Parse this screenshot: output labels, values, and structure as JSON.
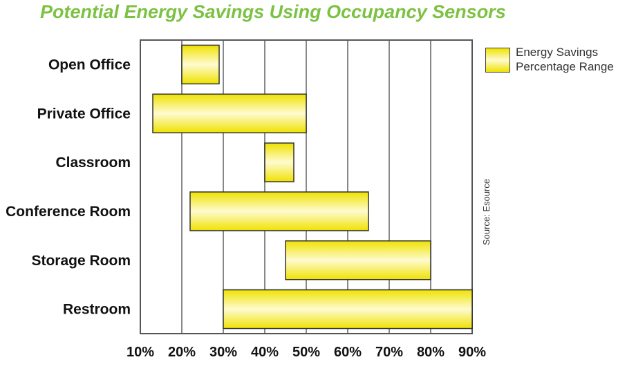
{
  "chart_data": {
    "type": "bar",
    "orientation": "horizontal-range",
    "title": "Potential Energy Savings Using Occupancy Sensors",
    "categories": [
      "Open Office",
      "Private Office",
      "Classroom",
      "Conference Room",
      "Storage Room",
      "Restroom"
    ],
    "series": [
      {
        "name": "Energy Savings Percentage Range",
        "ranges": [
          [
            20,
            29
          ],
          [
            13,
            50
          ],
          [
            40,
            47
          ],
          [
            22,
            65
          ],
          [
            45,
            80
          ],
          [
            30,
            90
          ]
        ]
      }
    ],
    "xlim": [
      10,
      90
    ],
    "xticks": [
      "10%",
      "20%",
      "30%",
      "40%",
      "50%",
      "60%",
      "70%",
      "80%",
      "90%"
    ],
    "grid": "vertical",
    "legend_position": "top-right",
    "legend_lines": [
      "Energy Savings",
      "Percentage Range"
    ],
    "annotation": "Source: Esource",
    "colors": {
      "title": "#7cc242",
      "bar_edge": "#efe200",
      "bar_center": "#fffbd0",
      "grid": "#888888"
    }
  }
}
